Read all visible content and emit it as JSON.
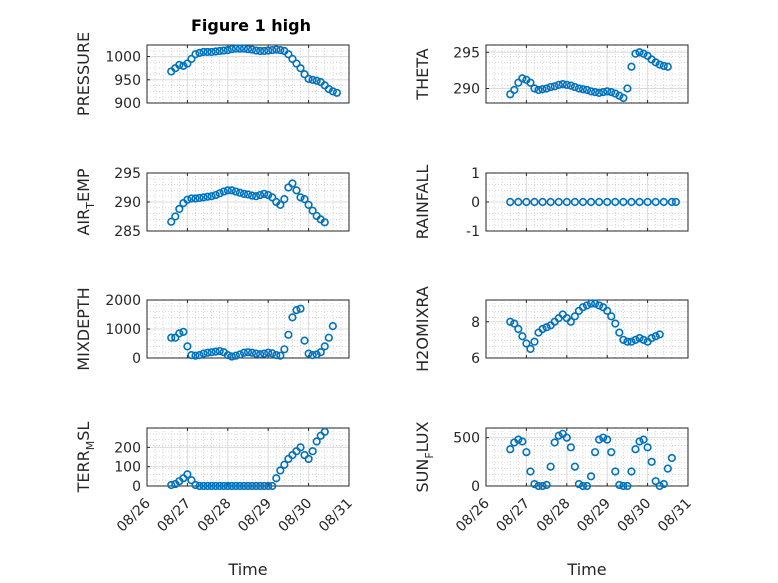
{
  "chart_data": {
    "type": "scatter",
    "title": "Figure 1 high",
    "xlabel": "Time",
    "x_ticks": [
      "08/26",
      "08/27",
      "08/28",
      "08/29",
      "08/30",
      "08/31"
    ],
    "x_range": [
      "08/26",
      "08/31"
    ],
    "marker_color": "#0072BD",
    "grid": true,
    "minor_grid": true,
    "panels": [
      {
        "name": "pressure",
        "ylabel": "PRESSURE",
        "ylim": [
          900,
          1025
        ],
        "yticks": [
          900,
          950,
          1000
        ],
        "points": [
          [
            0.6,
            968
          ],
          [
            0.7,
            975
          ],
          [
            0.8,
            982
          ],
          [
            0.9,
            980
          ],
          [
            1.0,
            985
          ],
          [
            1.1,
            995
          ],
          [
            1.2,
            1005
          ],
          [
            1.3,
            1008
          ],
          [
            1.4,
            1010
          ],
          [
            1.5,
            1010
          ],
          [
            1.6,
            1010
          ],
          [
            1.7,
            1011
          ],
          [
            1.8,
            1012
          ],
          [
            1.9,
            1013
          ],
          [
            2.0,
            1014
          ],
          [
            2.1,
            1016
          ],
          [
            2.2,
            1017
          ],
          [
            2.3,
            1017
          ],
          [
            2.4,
            1017
          ],
          [
            2.5,
            1016
          ],
          [
            2.6,
            1015
          ],
          [
            2.7,
            1013
          ],
          [
            2.8,
            1012
          ],
          [
            2.9,
            1012
          ],
          [
            3.0,
            1013
          ],
          [
            3.1,
            1014
          ],
          [
            3.2,
            1015
          ],
          [
            3.3,
            1014
          ],
          [
            3.4,
            1012
          ],
          [
            3.5,
            1005
          ],
          [
            3.6,
            995
          ],
          [
            3.7,
            985
          ],
          [
            3.8,
            975
          ],
          [
            3.9,
            962
          ],
          [
            4.0,
            952
          ],
          [
            4.1,
            950
          ],
          [
            4.2,
            948
          ],
          [
            4.3,
            945
          ],
          [
            4.4,
            938
          ],
          [
            4.5,
            930
          ],
          [
            4.6,
            925
          ],
          [
            4.7,
            922
          ]
        ]
      },
      {
        "name": "theta",
        "ylabel": "THETA",
        "ylim": [
          288,
          296
        ],
        "yticks": [
          290,
          295
        ],
        "points": [
          [
            0.6,
            289.2
          ],
          [
            0.7,
            289.8
          ],
          [
            0.8,
            290.8
          ],
          [
            0.9,
            291.4
          ],
          [
            1.0,
            291.2
          ],
          [
            1.1,
            290.8
          ],
          [
            1.2,
            290.0
          ],
          [
            1.3,
            289.8
          ],
          [
            1.4,
            289.9
          ],
          [
            1.5,
            290.0
          ],
          [
            1.6,
            290.2
          ],
          [
            1.7,
            290.3
          ],
          [
            1.8,
            290.5
          ],
          [
            1.9,
            290.6
          ],
          [
            2.0,
            290.5
          ],
          [
            2.1,
            290.4
          ],
          [
            2.2,
            290.2
          ],
          [
            2.3,
            290.0
          ],
          [
            2.4,
            289.9
          ],
          [
            2.5,
            289.8
          ],
          [
            2.6,
            289.6
          ],
          [
            2.7,
            289.5
          ],
          [
            2.8,
            289.4
          ],
          [
            2.9,
            289.5
          ],
          [
            3.0,
            289.6
          ],
          [
            3.1,
            289.5
          ],
          [
            3.2,
            289.3
          ],
          [
            3.3,
            289.0
          ],
          [
            3.4,
            288.7
          ],
          [
            3.5,
            290.0
          ],
          [
            3.6,
            293.0
          ],
          [
            3.7,
            294.8
          ],
          [
            3.8,
            295.0
          ],
          [
            3.9,
            294.8
          ],
          [
            4.0,
            294.5
          ],
          [
            4.1,
            294.0
          ],
          [
            4.2,
            293.6
          ],
          [
            4.3,
            293.3
          ],
          [
            4.4,
            293.1
          ],
          [
            4.5,
            293.0
          ]
        ]
      },
      {
        "name": "air-temp",
        "ylabel": "AIR_TEMP",
        "ylim": [
          285,
          295
        ],
        "yticks": [
          285,
          290,
          295
        ],
        "points": [
          [
            0.6,
            286.6
          ],
          [
            0.7,
            287.5
          ],
          [
            0.8,
            288.8
          ],
          [
            0.9,
            289.8
          ],
          [
            1.0,
            290.4
          ],
          [
            1.1,
            290.6
          ],
          [
            1.2,
            290.6
          ],
          [
            1.3,
            290.7
          ],
          [
            1.4,
            290.8
          ],
          [
            1.5,
            290.9
          ],
          [
            1.6,
            291.0
          ],
          [
            1.7,
            291.2
          ],
          [
            1.8,
            291.5
          ],
          [
            1.9,
            291.8
          ],
          [
            2.0,
            292.0
          ],
          [
            2.1,
            292.0
          ],
          [
            2.2,
            291.8
          ],
          [
            2.3,
            291.6
          ],
          [
            2.4,
            291.4
          ],
          [
            2.5,
            291.3
          ],
          [
            2.6,
            291.1
          ],
          [
            2.7,
            291.0
          ],
          [
            2.8,
            291.2
          ],
          [
            2.9,
            291.4
          ],
          [
            3.0,
            291.2
          ],
          [
            3.1,
            290.8
          ],
          [
            3.2,
            290.0
          ],
          [
            3.3,
            289.5
          ],
          [
            3.4,
            290.5
          ],
          [
            3.5,
            292.5
          ],
          [
            3.6,
            293.2
          ],
          [
            3.7,
            292.0
          ],
          [
            3.8,
            290.8
          ],
          [
            3.9,
            290.5
          ],
          [
            4.0,
            289.5
          ],
          [
            4.1,
            288.5
          ],
          [
            4.2,
            287.6
          ],
          [
            4.3,
            287.0
          ],
          [
            4.4,
            286.5
          ]
        ]
      },
      {
        "name": "rainfall",
        "ylabel": "RAINFALL",
        "ylim": [
          -1,
          1
        ],
        "yticks": [
          -1,
          0,
          1
        ],
        "points": [
          [
            0.6,
            0
          ],
          [
            0.8,
            0
          ],
          [
            1.0,
            0
          ],
          [
            1.2,
            0
          ],
          [
            1.4,
            0
          ],
          [
            1.6,
            0
          ],
          [
            1.8,
            0
          ],
          [
            2.0,
            0
          ],
          [
            2.2,
            0
          ],
          [
            2.4,
            0
          ],
          [
            2.6,
            0
          ],
          [
            2.8,
            0
          ],
          [
            3.0,
            0
          ],
          [
            3.2,
            0
          ],
          [
            3.4,
            0
          ],
          [
            3.6,
            0
          ],
          [
            3.8,
            0
          ],
          [
            4.0,
            0
          ],
          [
            4.2,
            0
          ],
          [
            4.4,
            0
          ],
          [
            4.6,
            0
          ],
          [
            4.7,
            0
          ]
        ]
      },
      {
        "name": "mixdepth",
        "ylabel": "MIXDEPTH",
        "ylim": [
          0,
          2000
        ],
        "yticks": [
          0,
          1000,
          2000
        ],
        "points": [
          [
            0.6,
            700
          ],
          [
            0.7,
            700
          ],
          [
            0.8,
            850
          ],
          [
            0.9,
            900
          ],
          [
            1.0,
            400
          ],
          [
            1.1,
            100
          ],
          [
            1.2,
            80
          ],
          [
            1.3,
            100
          ],
          [
            1.4,
            150
          ],
          [
            1.5,
            180
          ],
          [
            1.6,
            200
          ],
          [
            1.7,
            220
          ],
          [
            1.8,
            240
          ],
          [
            1.9,
            200
          ],
          [
            2.0,
            100
          ],
          [
            2.1,
            50
          ],
          [
            2.2,
            80
          ],
          [
            2.3,
            120
          ],
          [
            2.4,
            180
          ],
          [
            2.5,
            200
          ],
          [
            2.6,
            180
          ],
          [
            2.7,
            150
          ],
          [
            2.8,
            130
          ],
          [
            2.9,
            150
          ],
          [
            3.0,
            180
          ],
          [
            3.1,
            160
          ],
          [
            3.2,
            100
          ],
          [
            3.3,
            80
          ],
          [
            3.4,
            300
          ],
          [
            3.5,
            800
          ],
          [
            3.6,
            1400
          ],
          [
            3.7,
            1650
          ],
          [
            3.8,
            1700
          ],
          [
            3.9,
            600
          ],
          [
            4.0,
            150
          ],
          [
            4.1,
            100
          ],
          [
            4.2,
            120
          ],
          [
            4.3,
            200
          ],
          [
            4.4,
            400
          ],
          [
            4.5,
            700
          ],
          [
            4.6,
            1100
          ]
        ]
      },
      {
        "name": "h2omixra",
        "ylabel": "H2OMIXRA",
        "ylim": [
          6,
          9.2
        ],
        "yticks": [
          6,
          8
        ],
        "points": [
          [
            0.6,
            8.0
          ],
          [
            0.7,
            7.9
          ],
          [
            0.8,
            7.6
          ],
          [
            0.9,
            7.2
          ],
          [
            1.0,
            6.8
          ],
          [
            1.1,
            6.5
          ],
          [
            1.2,
            6.9
          ],
          [
            1.3,
            7.4
          ],
          [
            1.4,
            7.6
          ],
          [
            1.5,
            7.7
          ],
          [
            1.6,
            7.8
          ],
          [
            1.7,
            8.0
          ],
          [
            1.8,
            8.2
          ],
          [
            1.9,
            8.4
          ],
          [
            2.0,
            8.2
          ],
          [
            2.1,
            8.0
          ],
          [
            2.2,
            8.3
          ],
          [
            2.3,
            8.6
          ],
          [
            2.4,
            8.8
          ],
          [
            2.5,
            8.9
          ],
          [
            2.6,
            9.0
          ],
          [
            2.7,
            9.0
          ],
          [
            2.8,
            8.9
          ],
          [
            2.9,
            8.8
          ],
          [
            3.0,
            8.6
          ],
          [
            3.1,
            8.3
          ],
          [
            3.2,
            7.9
          ],
          [
            3.3,
            7.4
          ],
          [
            3.4,
            7.0
          ],
          [
            3.5,
            6.9
          ],
          [
            3.6,
            6.9
          ],
          [
            3.7,
            7.0
          ],
          [
            3.8,
            7.1
          ],
          [
            3.9,
            7.0
          ],
          [
            4.0,
            6.9
          ],
          [
            4.1,
            7.1
          ],
          [
            4.2,
            7.2
          ],
          [
            4.3,
            7.3
          ]
        ]
      },
      {
        "name": "terr-msl",
        "ylabel": "TERR_MSL",
        "ylim": [
          0,
          300
        ],
        "yticks": [
          0,
          100,
          200
        ],
        "points": [
          [
            0.6,
            5
          ],
          [
            0.7,
            10
          ],
          [
            0.8,
            25
          ],
          [
            0.9,
            40
          ],
          [
            1.0,
            60
          ],
          [
            1.1,
            30
          ],
          [
            1.2,
            5
          ],
          [
            1.3,
            0
          ],
          [
            1.4,
            0
          ],
          [
            1.5,
            0
          ],
          [
            1.6,
            0
          ],
          [
            1.7,
            0
          ],
          [
            1.8,
            0
          ],
          [
            1.9,
            0
          ],
          [
            2.0,
            0
          ],
          [
            2.1,
            0
          ],
          [
            2.2,
            0
          ],
          [
            2.3,
            0
          ],
          [
            2.4,
            0
          ],
          [
            2.5,
            0
          ],
          [
            2.6,
            0
          ],
          [
            2.7,
            0
          ],
          [
            2.8,
            0
          ],
          [
            2.9,
            0
          ],
          [
            3.0,
            0
          ],
          [
            3.1,
            0
          ],
          [
            3.2,
            40
          ],
          [
            3.3,
            80
          ],
          [
            3.4,
            110
          ],
          [
            3.5,
            140
          ],
          [
            3.6,
            160
          ],
          [
            3.7,
            180
          ],
          [
            3.8,
            200
          ],
          [
            3.9,
            160
          ],
          [
            4.0,
            140
          ],
          [
            4.1,
            180
          ],
          [
            4.2,
            230
          ],
          [
            4.3,
            260
          ],
          [
            4.4,
            280
          ]
        ]
      },
      {
        "name": "sun-flux",
        "ylabel": "SUN_FLUX",
        "ylim": [
          0,
          600
        ],
        "yticks": [
          0,
          500
        ],
        "points": [
          [
            0.6,
            380
          ],
          [
            0.7,
            450
          ],
          [
            0.8,
            480
          ],
          [
            0.9,
            460
          ],
          [
            1.0,
            350
          ],
          [
            1.1,
            150
          ],
          [
            1.2,
            20
          ],
          [
            1.3,
            0
          ],
          [
            1.4,
            0
          ],
          [
            1.5,
            10
          ],
          [
            1.6,
            200
          ],
          [
            1.7,
            450
          ],
          [
            1.8,
            520
          ],
          [
            1.9,
            540
          ],
          [
            2.0,
            500
          ],
          [
            2.1,
            400
          ],
          [
            2.2,
            200
          ],
          [
            2.3,
            20
          ],
          [
            2.4,
            0
          ],
          [
            2.5,
            0
          ],
          [
            2.6,
            100
          ],
          [
            2.7,
            350
          ],
          [
            2.8,
            480
          ],
          [
            2.9,
            500
          ],
          [
            3.0,
            480
          ],
          [
            3.1,
            350
          ],
          [
            3.2,
            150
          ],
          [
            3.3,
            10
          ],
          [
            3.4,
            0
          ],
          [
            3.5,
            0
          ],
          [
            3.6,
            150
          ],
          [
            3.7,
            380
          ],
          [
            3.8,
            460
          ],
          [
            3.9,
            480
          ],
          [
            4.0,
            400
          ],
          [
            4.1,
            250
          ],
          [
            4.2,
            50
          ],
          [
            4.3,
            0
          ],
          [
            4.4,
            20
          ],
          [
            4.5,
            180
          ],
          [
            4.6,
            290
          ]
        ]
      }
    ]
  }
}
